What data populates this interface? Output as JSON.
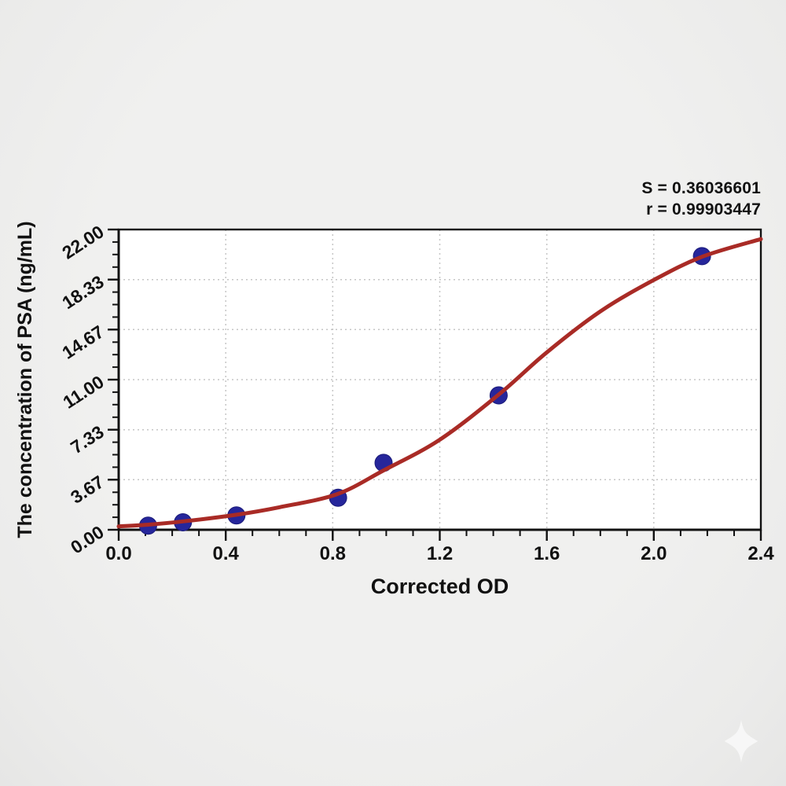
{
  "annotation": {
    "line1": "S = 0.36036601",
    "line2": "r = 0.99903447"
  },
  "chart_data": {
    "type": "scatter",
    "title": "",
    "xlabel": "Corrected OD",
    "ylabel": "The concentration of PSA (ng/mL)",
    "xlim": [
      0,
      2.4
    ],
    "ylim": [
      0,
      22
    ],
    "x_tick_labels": [
      "0.0",
      "0.4",
      "0.8",
      "1.2",
      "1.6",
      "2.0",
      "2.4"
    ],
    "x_minor_step": 0.1,
    "y_tick_labels": [
      "0.00",
      "3.67",
      "7.33",
      "11.00",
      "14.67",
      "18.33",
      "22.00"
    ],
    "y_minor_per_major": 3,
    "grid": "dotted gridlines at major ticks",
    "legend_position": "none",
    "series": [
      {
        "name": "standard-points",
        "kind": "scatter",
        "points": [
          {
            "od": 0.11,
            "conc": 0.3
          },
          {
            "od": 0.24,
            "conc": 0.55
          },
          {
            "od": 0.44,
            "conc": 1.05
          },
          {
            "od": 0.82,
            "conc": 2.35
          },
          {
            "od": 0.99,
            "conc": 4.9
          },
          {
            "od": 1.42,
            "conc": 9.85
          },
          {
            "od": 2.18,
            "conc": 20.05
          }
        ]
      },
      {
        "name": "4pl-fit-curve",
        "kind": "curve",
        "points": [
          {
            "od": 0.0,
            "conc": 0.25
          },
          {
            "od": 0.115,
            "conc": 0.38
          },
          {
            "od": 0.245,
            "conc": 0.62
          },
          {
            "od": 0.44,
            "conc": 1.1
          },
          {
            "od": 0.6,
            "conc": 1.65
          },
          {
            "od": 0.815,
            "conc": 2.6
          },
          {
            "od": 0.99,
            "conc": 4.35
          },
          {
            "od": 1.2,
            "conc": 6.6
          },
          {
            "od": 1.42,
            "conc": 9.9
          },
          {
            "od": 1.6,
            "conc": 13.0
          },
          {
            "od": 1.8,
            "conc": 16.0
          },
          {
            "od": 2.0,
            "conc": 18.3
          },
          {
            "od": 2.18,
            "conc": 20.0
          },
          {
            "od": 2.4,
            "conc": 21.3
          }
        ]
      }
    ],
    "stats": {
      "S": "0.36036601",
      "r": "0.99903447"
    }
  },
  "colors": {
    "curve": "#a92b26",
    "point": "#26269b",
    "axis": "#111111",
    "grid": "#c6c6c6",
    "text": "#111111",
    "plot_background": "#ffffff"
  },
  "watermark": {
    "icon": "sparkle"
  }
}
